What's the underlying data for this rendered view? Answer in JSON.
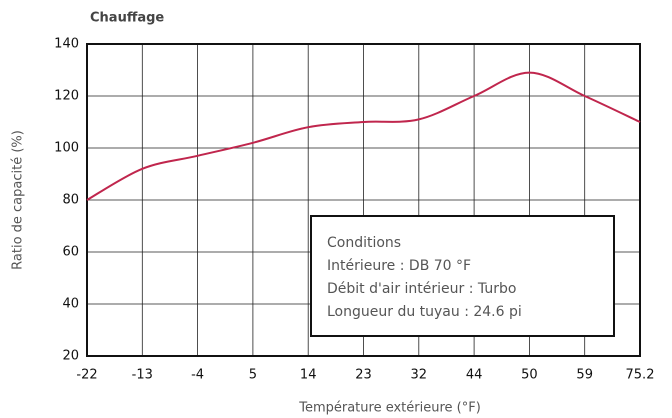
{
  "chart_data": {
    "type": "line",
    "title": "Chauffage",
    "x_label": "Température extérieure (°F)",
    "y_label": "Ratio de capacité (%)",
    "categories": [
      "-22",
      "-13",
      "-4",
      "5",
      "14",
      "23",
      "32",
      "44",
      "50",
      "59",
      "75.2"
    ],
    "series": [
      {
        "name": null,
        "color": "#c0264d",
        "values": [
          80,
          92,
          97,
          102,
          108,
          110,
          111,
          120,
          129,
          120,
          110
        ]
      }
    ],
    "ylim": [
      20,
      140
    ],
    "yticks": [
      20,
      40,
      60,
      80,
      100,
      120,
      140
    ],
    "grid": true,
    "annotations": [
      "Conditions",
      "Intérieure : DB 70 °F",
      "Débit d'air intérieur : Turbo",
      "Longueur du tuyau : 24.6 pi"
    ]
  }
}
